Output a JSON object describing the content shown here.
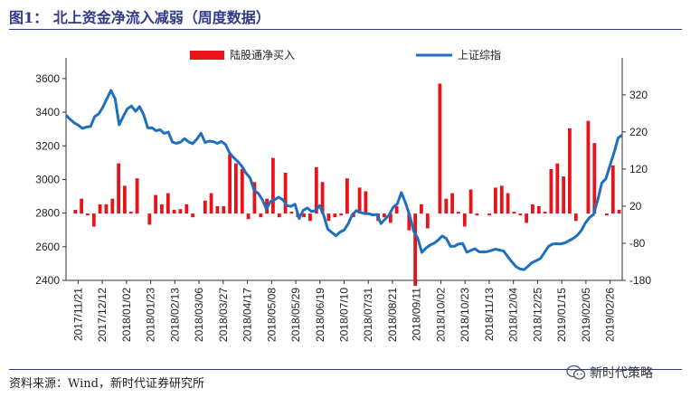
{
  "title": "图1：  北上资金净流入减弱（周度数据）",
  "source": "资料来源：Wind，新时代证券研究所",
  "watermark": "新时代策略",
  "chart_data": {
    "type": "bar+line",
    "legend": [
      "陆股通净买入",
      "上证综指"
    ],
    "colors": {
      "bar": "#e8131b",
      "line": "#1f6fbf"
    },
    "left_axis": {
      "ticks": [
        2400,
        2600,
        2800,
        3000,
        3200,
        3400,
        3600
      ],
      "range": [
        2400,
        3680
      ]
    },
    "right_axis": {
      "ticks": [
        -180,
        -80,
        20,
        120,
        220,
        320
      ],
      "range": [
        -180,
        400
      ]
    },
    "x_tick_labels": [
      "2017/11/21",
      "2017/12/12",
      "2018/01/02",
      "2018/01/23",
      "2018/02/13",
      "2018/03/06",
      "2018/03/27",
      "2018/04/17",
      "2018/05/08",
      "2018/05/29",
      "2018/06/19",
      "2018/07/10",
      "2018/07/31",
      "2018/08/21",
      "2018/09/11",
      "2018/10/02",
      "2018/10/23",
      "2018/11/13",
      "2018/12/04",
      "2018/12/25",
      "2019/01/15",
      "2019/02/05",
      "2019/02/26"
    ],
    "bars": [
      0,
      10,
      40,
      -5,
      -35,
      25,
      25,
      40,
      135,
      75,
      5,
      95,
      0,
      -30,
      50,
      25,
      55,
      10,
      12,
      25,
      -10,
      0,
      35,
      55,
      20,
      20,
      160,
      135,
      120,
      -15,
      85,
      -10,
      40,
      150,
      -10,
      110,
      5,
      -10,
      -10,
      -20,
      125,
      85,
      -20,
      -10,
      -5,
      95,
      -10,
      70,
      60,
      0,
      -20,
      -10,
      -25,
      20,
      0,
      -45,
      -195,
      25,
      -40,
      0,
      350,
      40,
      55,
      5,
      -35,
      65,
      -5,
      0,
      -5,
      70,
      75,
      55,
      5,
      -5,
      -25,
      25,
      20,
      5,
      120,
      135,
      100,
      230,
      -20,
      0,
      250,
      190,
      0,
      -5,
      130,
      10
    ],
    "line": [
      3382,
      3358,
      3337,
      3323,
      3304,
      3312,
      3315,
      3374,
      3390,
      3430,
      3480,
      3530,
      3480,
      3325,
      3375,
      3420,
      3437,
      3405,
      3433,
      3385,
      3307,
      3308,
      3290,
      3296,
      3274,
      3282,
      3223,
      3215,
      3222,
      3243,
      3223,
      3213,
      3240,
      3275,
      3220,
      3228,
      3225,
      3215,
      3226,
      3208,
      3157,
      3130,
      3107,
      3079,
      3038,
      3010,
      2935,
      2918,
      2880,
      2825,
      2869,
      2880,
      2895,
      2880,
      2845,
      2840,
      2853,
      2768,
      2817,
      2831,
      2810,
      2815,
      2845,
      2787,
      2705,
      2685,
      2665,
      2687,
      2699,
      2736,
      2791,
      2815,
      2804,
      2797,
      2797,
      2789,
      2792,
      2738,
      2763,
      2789,
      2835,
      2855,
      2922,
      2862,
      2787,
      2693,
      2650,
      2566,
      2591,
      2610,
      2621,
      2640,
      2664,
      2648,
      2602,
      2603,
      2617,
      2619,
      2567,
      2578,
      2588,
      2570,
      2569,
      2571,
      2578,
      2586,
      2580,
      2574,
      2541,
      2511,
      2483,
      2468,
      2464,
      2485,
      2506,
      2518,
      2530,
      2566,
      2603,
      2616,
      2618,
      2617,
      2623,
      2636,
      2649,
      2668,
      2697,
      2742,
      2773,
      2792,
      2878,
      2979,
      3004,
      3082,
      3160,
      3247,
      3265
    ]
  }
}
